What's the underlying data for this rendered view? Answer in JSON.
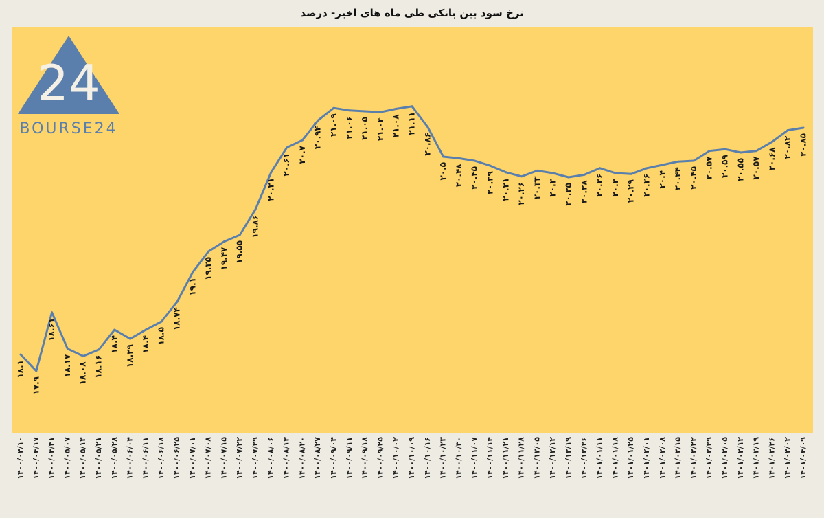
{
  "chart_data": {
    "type": "line",
    "title": "نرخ سود بین بانکی طی ماه های اخیر- درصد",
    "xlabel": "",
    "ylabel": "",
    "ylim": [
      17.4,
      21.65
    ],
    "grid": false,
    "legend": "none",
    "categories": [
      "۱۴۰۰/۰۴/۱۰",
      "۱۴۰۰/۰۴/۱۷",
      "۱۴۰۰/۰۴/۳۱",
      "۱۴۰۰/۰۵/۰۷",
      "۱۴۰۰/۰۵/۱۴",
      "۱۴۰۰/۰۵/۲۱",
      "۱۴۰۰/۰۵/۲۸",
      "۱۴۰۰/۰۶/۰۴",
      "۱۴۰۰/۰۶/۱۱",
      "۱۴۰۰/۰۶/۱۸",
      "۱۴۰۰/۰۶/۲۵",
      "۱۴۰۰/۰۷/۰۱",
      "۱۴۰۰/۰۷/۰۸",
      "۱۴۰۰/۰۷/۱۵",
      "۱۴۰۰/۰۷/۲۲",
      "۱۴۰۰/۰۷/۲۹",
      "۱۴۰۰/۰۸/۰۶",
      "۱۴۰۰/۰۸/۱۳",
      "۱۴۰۰/۰۸/۲۰",
      "۱۴۰۰/۰۸/۲۷",
      "۱۴۰۰/۰۹/۰۴",
      "۱۴۰۰/۰۹/۱۱",
      "۱۴۰۰/۰۹/۱۸",
      "۱۴۰۰/۰۹/۲۵",
      "۱۴۰۰/۱۰/۰۲",
      "۱۴۰۰/۱۰/۰۹",
      "۱۴۰۰/۱۰/۱۶",
      "۱۴۰۰/۱۰/۲۳",
      "۱۴۰۰/۱۰/۳۰",
      "۱۴۰۰/۱۱/۰۷",
      "۱۴۰۰/۱۱/۱۴",
      "۱۴۰۰/۱۱/۲۱",
      "۱۴۰۰/۱۱/۲۸",
      "۱۴۰۰/۱۲/۰۵",
      "۱۴۰۰/۱۲/۱۲",
      "۱۴۰۰/۱۲/۱۹",
      "۱۴۰۰/۱۲/۲۶",
      "۱۴۰۱/۰۱/۱۱",
      "۱۴۰۱/۰۱/۱۸",
      "۱۴۰۱/۰۱/۲۵",
      "۱۴۰۱/۰۲/۰۱",
      "۱۴۰۱/۰۲/۰۸",
      "۱۴۰۱/۰۲/۱۵",
      "۱۴۰۱/۰۲/۲۲",
      "۱۴۰۱/۰۲/۲۹",
      "۱۴۰۱/۰۳/۰۵",
      "۱۴۰۱/۰۳/۱۲",
      "۱۴۰۱/۰۳/۱۹",
      "۱۴۰۱/۰۳/۲۶",
      "۱۴۰۱/۰۴/۰۲",
      "۱۴۰۱/۰۴/۰۹"
    ],
    "values": [
      18.1,
      17.9,
      18.61,
      18.17,
      18.08,
      18.16,
      18.4,
      18.29,
      18.4,
      18.5,
      18.74,
      19.1,
      19.35,
      19.47,
      19.55,
      19.86,
      20.31,
      20.61,
      20.7,
      20.94,
      21.09,
      21.06,
      21.05,
      21.04,
      21.08,
      21.11,
      20.86,
      20.5,
      20.48,
      20.45,
      20.39,
      20.31,
      20.26,
      20.33,
      20.3,
      20.25,
      20.28,
      20.36,
      20.3,
      20.29,
      20.36,
      20.4,
      20.44,
      20.45,
      20.57,
      20.59,
      20.55,
      20.57,
      20.68,
      20.82,
      20.85
    ],
    "data_labels": [
      "۱۸.۱",
      "۱۷.۹",
      "۱۸.۶۱",
      "۱۸.۱۷",
      "۱۸.۰۸",
      "۱۸.۱۶",
      "۱۸.۴",
      "۱۸.۲۹",
      "۱۸.۴",
      "۱۸.۵",
      "۱۸.۷۴",
      "۱۹.۱",
      "۱۹.۳۵",
      "۱۹.۴۷",
      "۱۹.۵۵",
      "۱۹.۸۶",
      "۲۰.۳۱",
      "۲۰.۶۱",
      "۲۰.۷",
      "۲۰.۹۴",
      "۲۱.۰۹",
      "۲۱.۰۶",
      "۲۱.۰۵",
      "۲۱.۰۴",
      "۲۱.۰۸",
      "۲۱.۱۱",
      "۲۰.۸۶",
      "۲۰.۵",
      "۲۰.۴۸",
      "۲۰.۴۵",
      "۲۰.۳۹",
      "۲۰.۳۱",
      "۲۰.۲۶",
      "۲۰.۳۳",
      "۲۰.۳",
      "۲۰.۲۵",
      "۲۰.۲۸",
      "۲۰.۳۶",
      "۲۰.۳",
      "۲۰.۲۹",
      "۲۰.۳۶",
      "۲۰.۴",
      "۲۰.۴۴",
      "۲۰.۴۵",
      "۲۰.۵۷",
      "۲۰.۵۹",
      "۲۰.۵۵",
      "۲۰.۵۷",
      "۲۰.۶۸",
      "۲۰.۸۲",
      "۲۰.۸۵"
    ],
    "line_color": "#5a7fad",
    "plot_background": "#fdd56b"
  },
  "logo": {
    "text": "BOURSE24",
    "mark": "24",
    "color": "#5a7fad"
  }
}
